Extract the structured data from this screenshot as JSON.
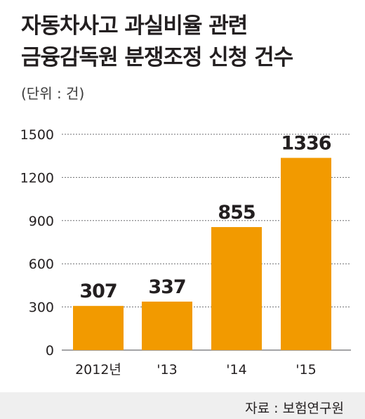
{
  "title_lines": [
    "자동차사고 과실비율 관련",
    "금융감독원 분쟁조정 신청 건수"
  ],
  "unit": "(단위 : 건)",
  "source": "자료 : 보험연구원",
  "colors": {
    "bar": "#f29a00",
    "grid": "#6d6e71",
    "text": "#231f20",
    "footer_bg": "#efefef"
  },
  "chart_data": {
    "type": "bar",
    "title": "자동차사고 과실비율 관련 금융감독원 분쟁조정 신청 건수",
    "categories": [
      "2012년",
      "'13",
      "'14",
      "'15"
    ],
    "values": [
      307,
      337,
      855,
      1336
    ],
    "data_labels": [
      "307",
      "337",
      "855",
      "1336"
    ],
    "ylim": [
      0,
      1500
    ],
    "yticks": [
      0,
      300,
      600,
      900,
      1200,
      1500
    ],
    "ytick_labels": [
      "0",
      "300",
      "600",
      "900",
      "1200",
      "1500"
    ],
    "grid": true,
    "legend": "none"
  }
}
